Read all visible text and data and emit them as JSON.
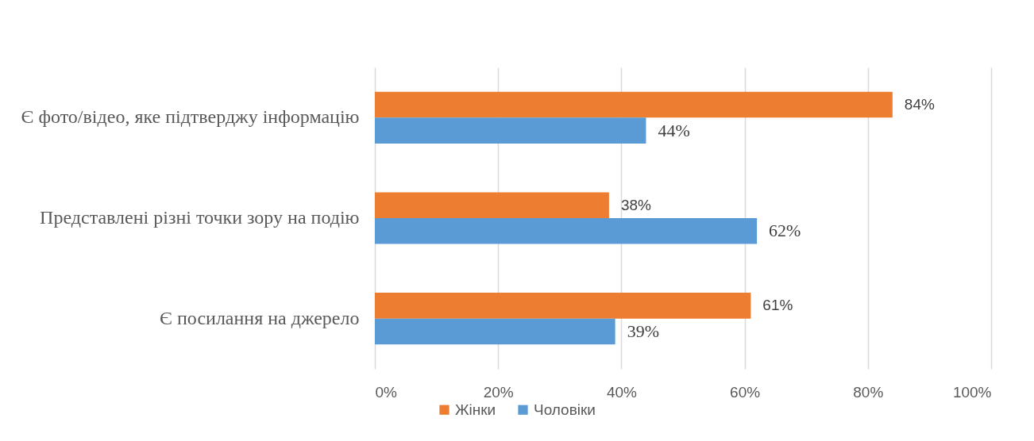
{
  "chart_data": {
    "type": "bar",
    "orientation": "horizontal",
    "categories": [
      "Є фото/відео, яке підтверджу інформацію",
      "Представлені різні точки зору на подію",
      "Є посилання на джерело"
    ],
    "series": [
      {
        "name": "Жінки",
        "color": "#ed7d31",
        "values": [
          84,
          38,
          61
        ],
        "value_labels": [
          "84%",
          "38%",
          "61%"
        ]
      },
      {
        "name": "Чоловіки",
        "color": "#5b9bd5",
        "values": [
          44,
          62,
          39
        ],
        "value_labels": [
          "44%",
          "62%",
          "39%"
        ]
      }
    ],
    "xlim": [
      0,
      100
    ],
    "xticks": [
      {
        "value": 0,
        "label": "0%"
      },
      {
        "value": 20,
        "label": "20%"
      },
      {
        "value": 40,
        "label": "40%"
      },
      {
        "value": 60,
        "label": "60%"
      },
      {
        "value": 80,
        "label": "80%"
      },
      {
        "value": 100,
        "label": "100%"
      }
    ],
    "grid": "x",
    "legend": "bottom"
  }
}
